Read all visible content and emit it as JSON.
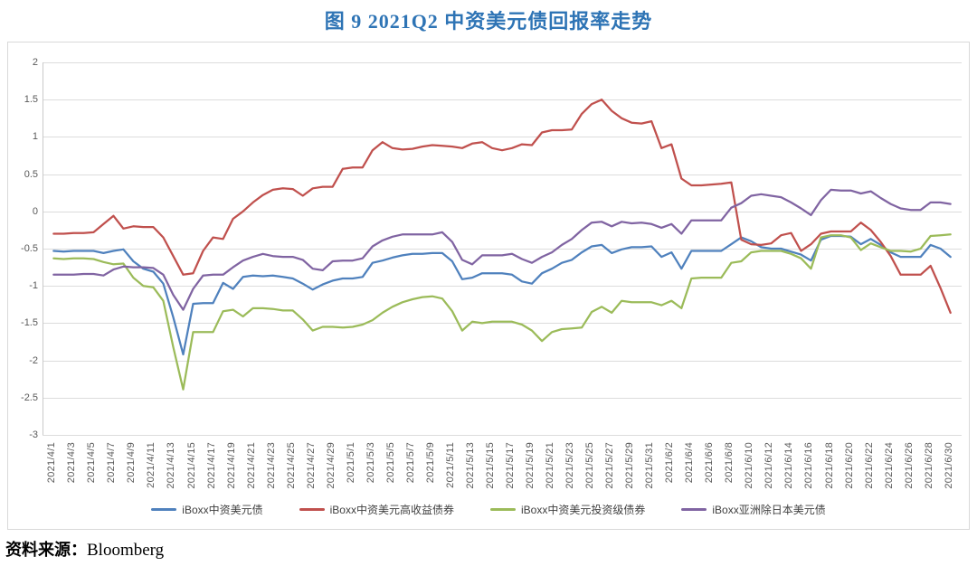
{
  "title": "图 9   2021Q2 中资美元债回报率走势",
  "source": {
    "label": "资料来源：",
    "value": "Bloomberg"
  },
  "chart_data": {
    "type": "line",
    "title": "图 9 2021Q2 中资美元债回报率走势",
    "xlabel": "",
    "ylabel": "",
    "ylim": [
      -3,
      2
    ],
    "y_ticks": [
      "2",
      "1.5",
      "1",
      "0.5",
      "0",
      "-0.5",
      "-1",
      "-1.5",
      "-2",
      "-2.5",
      "-3"
    ],
    "x_label_every": 2,
    "grid": true,
    "legend_position": "bottom",
    "x": [
      "2021/4/1",
      "2021/4/2",
      "2021/4/3",
      "2021/4/4",
      "2021/4/5",
      "2021/4/6",
      "2021/4/7",
      "2021/4/8",
      "2021/4/9",
      "2021/4/10",
      "2021/4/11",
      "2021/4/12",
      "2021/4/13",
      "2021/4/14",
      "2021/4/15",
      "2021/4/16",
      "2021/4/17",
      "2021/4/18",
      "2021/4/19",
      "2021/4/20",
      "2021/4/21",
      "2021/4/22",
      "2021/4/23",
      "2021/4/24",
      "2021/4/25",
      "2021/4/26",
      "2021/4/27",
      "2021/4/28",
      "2021/4/29",
      "2021/4/30",
      "2021/5/1",
      "2021/5/2",
      "2021/5/3",
      "2021/5/4",
      "2021/5/5",
      "2021/5/6",
      "2021/5/7",
      "2021/5/8",
      "2021/5/9",
      "2021/5/10",
      "2021/5/11",
      "2021/5/12",
      "2021/5/13",
      "2021/5/14",
      "2021/5/15",
      "2021/5/16",
      "2021/5/17",
      "2021/5/18",
      "2021/5/19",
      "2021/5/20",
      "2021/5/21",
      "2021/5/22",
      "2021/5/23",
      "2021/5/24",
      "2021/5/25",
      "2021/5/26",
      "2021/5/27",
      "2021/5/28",
      "2021/5/29",
      "2021/5/30",
      "2021/5/31",
      "2021/6/1",
      "2021/6/2",
      "2021/6/3",
      "2021/6/4",
      "2021/6/5",
      "2021/6/6",
      "2021/6/7",
      "2021/6/8",
      "2021/6/9",
      "2021/6/10",
      "2021/6/11",
      "2021/6/12",
      "2021/6/13",
      "2021/6/14",
      "2021/6/15",
      "2021/6/16",
      "2021/6/17",
      "2021/6/18",
      "2021/6/19",
      "2021/6/20",
      "2021/6/21",
      "2021/6/22",
      "2021/6/23",
      "2021/6/24",
      "2021/6/25",
      "2021/6/26",
      "2021/6/27",
      "2021/6/28",
      "2021/6/29",
      "2021/6/30"
    ],
    "series": [
      {
        "name": "iBoxx中资美元债",
        "color": "#4F81BD",
        "values": [
          -0.53,
          -0.54,
          -0.53,
          -0.53,
          -0.53,
          -0.56,
          -0.53,
          -0.51,
          -0.67,
          -0.77,
          -0.81,
          -0.97,
          -1.42,
          -1.92,
          -1.24,
          -1.23,
          -1.23,
          -0.96,
          -1.04,
          -0.88,
          -0.86,
          -0.87,
          -0.86,
          -0.88,
          -0.9,
          -0.97,
          -1.05,
          -0.98,
          -0.93,
          -0.9,
          -0.9,
          -0.88,
          -0.69,
          -0.66,
          -0.62,
          -0.59,
          -0.57,
          -0.57,
          -0.56,
          -0.56,
          -0.67,
          -0.91,
          -0.89,
          -0.83,
          -0.83,
          -0.83,
          -0.85,
          -0.94,
          -0.97,
          -0.83,
          -0.77,
          -0.69,
          -0.65,
          -0.55,
          -0.47,
          -0.45,
          -0.56,
          -0.51,
          -0.48,
          -0.48,
          -0.47,
          -0.61,
          -0.55,
          -0.77,
          -0.53,
          -0.53,
          -0.53,
          -0.53,
          -0.44,
          -0.35,
          -0.4,
          -0.48,
          -0.5,
          -0.5,
          -0.54,
          -0.58,
          -0.66,
          -0.38,
          -0.33,
          -0.33,
          -0.34,
          -0.44,
          -0.37,
          -0.45,
          -0.55,
          -0.61,
          -0.61,
          -0.61,
          -0.45,
          -0.5,
          -0.61
        ]
      },
      {
        "name": "iBoxx中资美元高收益债券",
        "color": "#C0504D",
        "values": [
          -0.3,
          -0.3,
          -0.29,
          -0.29,
          -0.28,
          -0.17,
          -0.06,
          -0.23,
          -0.2,
          -0.21,
          -0.21,
          -0.35,
          -0.6,
          -0.85,
          -0.83,
          -0.53,
          -0.35,
          -0.37,
          -0.1,
          0.0,
          0.12,
          0.22,
          0.29,
          0.31,
          0.3,
          0.21,
          0.31,
          0.33,
          0.33,
          0.57,
          0.59,
          0.59,
          0.82,
          0.93,
          0.85,
          0.83,
          0.84,
          0.87,
          0.89,
          0.88,
          0.87,
          0.85,
          0.91,
          0.93,
          0.85,
          0.82,
          0.85,
          0.9,
          0.89,
          1.06,
          1.09,
          1.09,
          1.1,
          1.31,
          1.44,
          1.5,
          1.35,
          1.25,
          1.19,
          1.18,
          1.21,
          0.85,
          0.9,
          0.44,
          0.35,
          0.35,
          0.36,
          0.37,
          0.39,
          -0.38,
          -0.44,
          -0.45,
          -0.43,
          -0.32,
          -0.29,
          -0.53,
          -0.44,
          -0.3,
          -0.27,
          -0.27,
          -0.27,
          -0.15,
          -0.25,
          -0.41,
          -0.6,
          -0.85,
          -0.85,
          -0.85,
          -0.73,
          -1.03,
          -1.36
        ]
      },
      {
        "name": "iBoxx中资美元投资级债券",
        "color": "#9BBB59",
        "values": [
          -0.63,
          -0.64,
          -0.63,
          -0.63,
          -0.64,
          -0.68,
          -0.71,
          -0.7,
          -0.89,
          -1.0,
          -1.02,
          -1.2,
          -1.82,
          -2.39,
          -1.62,
          -1.62,
          -1.62,
          -1.34,
          -1.32,
          -1.41,
          -1.3,
          -1.3,
          -1.31,
          -1.33,
          -1.33,
          -1.45,
          -1.6,
          -1.55,
          -1.55,
          -1.56,
          -1.55,
          -1.52,
          -1.46,
          -1.36,
          -1.28,
          -1.22,
          -1.18,
          -1.15,
          -1.14,
          -1.17,
          -1.34,
          -1.6,
          -1.48,
          -1.5,
          -1.48,
          -1.48,
          -1.48,
          -1.52,
          -1.6,
          -1.74,
          -1.62,
          -1.58,
          -1.57,
          -1.56,
          -1.35,
          -1.28,
          -1.36,
          -1.2,
          -1.22,
          -1.22,
          -1.22,
          -1.26,
          -1.2,
          -1.3,
          -0.9,
          -0.89,
          -0.89,
          -0.89,
          -0.69,
          -0.67,
          -0.55,
          -0.53,
          -0.53,
          -0.53,
          -0.57,
          -0.63,
          -0.77,
          -0.35,
          -0.32,
          -0.32,
          -0.35,
          -0.52,
          -0.43,
          -0.48,
          -0.53,
          -0.53,
          -0.54,
          -0.5,
          -0.33,
          -0.32,
          -0.31
        ]
      },
      {
        "name": "iBoxx亚洲除日本美元债",
        "color": "#8064A2",
        "values": [
          -0.85,
          -0.85,
          -0.85,
          -0.84,
          -0.84,
          -0.86,
          -0.78,
          -0.74,
          -0.75,
          -0.75,
          -0.76,
          -0.85,
          -1.12,
          -1.32,
          -1.04,
          -0.86,
          -0.85,
          -0.85,
          -0.75,
          -0.66,
          -0.61,
          -0.57,
          -0.6,
          -0.61,
          -0.61,
          -0.65,
          -0.77,
          -0.79,
          -0.67,
          -0.66,
          -0.66,
          -0.63,
          -0.47,
          -0.39,
          -0.34,
          -0.31,
          -0.31,
          -0.31,
          -0.31,
          -0.28,
          -0.41,
          -0.65,
          -0.71,
          -0.59,
          -0.59,
          -0.59,
          -0.57,
          -0.64,
          -0.69,
          -0.61,
          -0.55,
          -0.45,
          -0.37,
          -0.25,
          -0.15,
          -0.14,
          -0.2,
          -0.14,
          -0.16,
          -0.15,
          -0.17,
          -0.22,
          -0.17,
          -0.3,
          -0.12,
          -0.12,
          -0.12,
          -0.12,
          0.05,
          0.11,
          0.21,
          0.23,
          0.21,
          0.19,
          0.12,
          0.04,
          -0.05,
          0.15,
          0.29,
          0.28,
          0.28,
          0.24,
          0.27,
          0.18,
          0.1,
          0.04,
          0.02,
          0.02,
          0.12,
          0.12,
          0.1
        ]
      }
    ]
  }
}
